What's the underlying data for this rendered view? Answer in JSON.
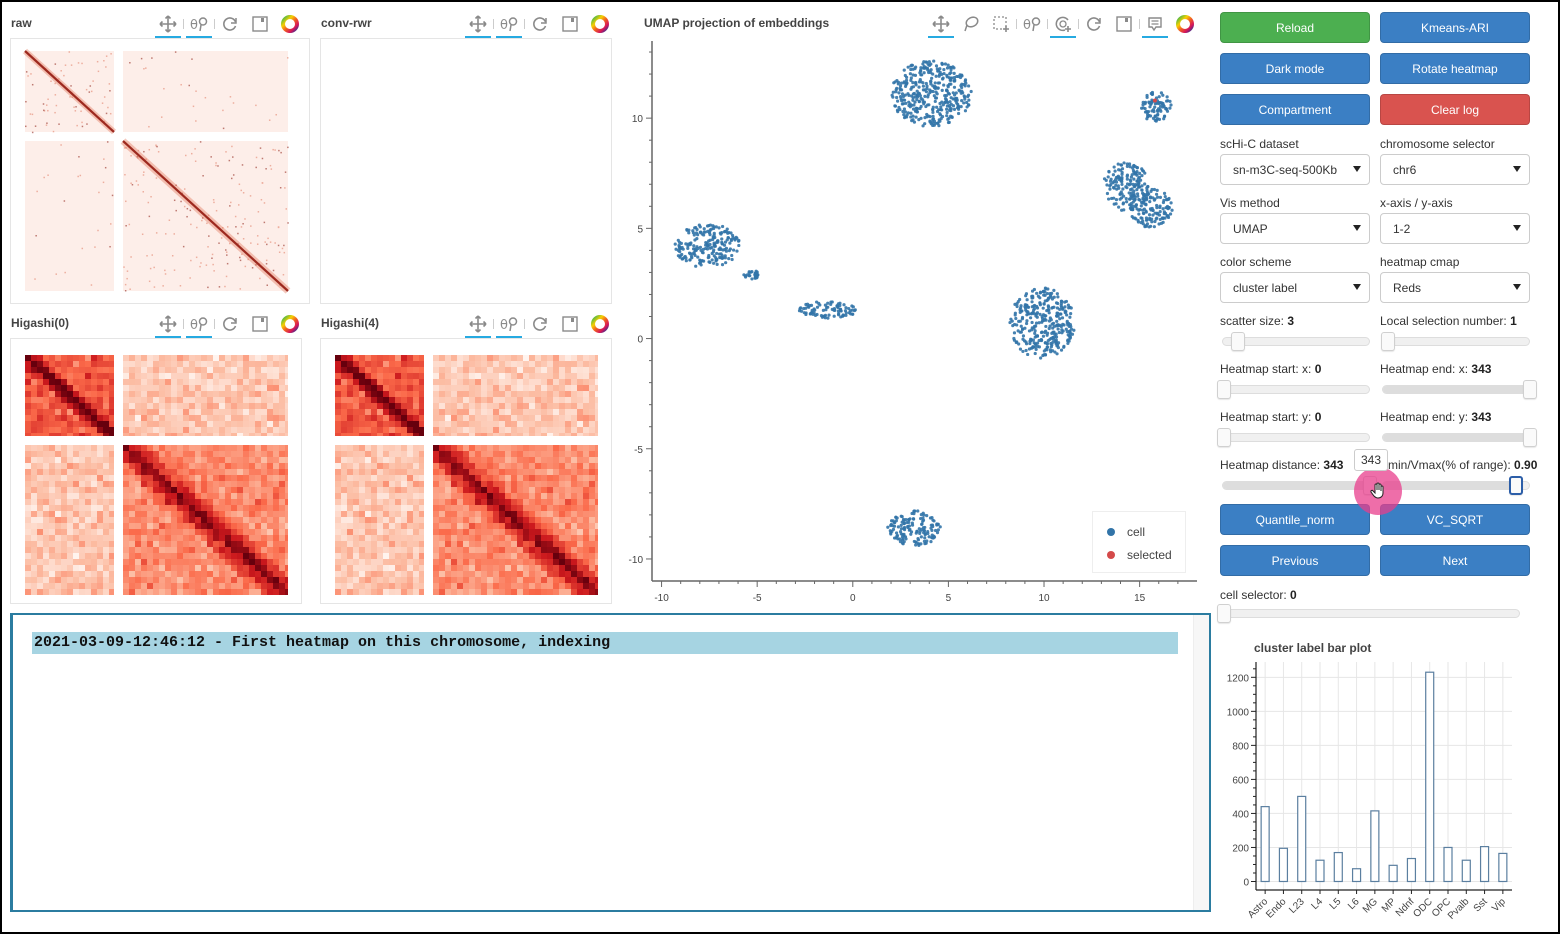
{
  "panels": {
    "raw": {
      "title": "raw"
    },
    "conv_rwr": {
      "title": "conv-rwr"
    },
    "higashi0": {
      "title": "Higashi(0)"
    },
    "higashi4": {
      "title": "Higashi(4)"
    },
    "umap": {
      "title": "UMAP projection of embeddings"
    }
  },
  "toolbar_icons": {
    "heatmap": [
      "pan-icon",
      "wheel-zoom-icon",
      "reset-icon",
      "save-icon",
      "bokeh-logo-icon"
    ],
    "umap": [
      "pan-icon",
      "lasso-select-icon",
      "box-select-icon",
      "wheel-zoom-icon",
      "tap-icon",
      "reset-icon",
      "save-icon",
      "hover-icon",
      "bokeh-logo-icon"
    ]
  },
  "buttons": {
    "reload": "Reload",
    "kmeans": "Kmeans-ARI",
    "dark_mode": "Dark mode",
    "rotate": "Rotate heatmap",
    "compartment": "Compartment",
    "clear_log": "Clear log",
    "quantile": "Quantile_norm",
    "vc_sqrt": "VC_SQRT",
    "previous": "Previous",
    "next": "Next"
  },
  "selects": {
    "dataset": {
      "label": "scHi-C dataset",
      "value": "sn-m3C-seq-500Kb"
    },
    "chromosome": {
      "label": "chromosome selector",
      "value": "chr6"
    },
    "vis_method": {
      "label": "Vis method",
      "value": "UMAP"
    },
    "axis": {
      "label": "x-axis / y-axis",
      "value": "1-2"
    },
    "color_scheme": {
      "label": "color scheme",
      "value": "cluster label"
    },
    "cmap": {
      "label": "heatmap cmap",
      "value": "Reds"
    }
  },
  "sliders": {
    "scatter_size": {
      "label": "scatter size: ",
      "value": "3"
    },
    "local_sel": {
      "label": "Local selection number: ",
      "value": "1"
    },
    "hm_start_x": {
      "label": "Heatmap start: x: ",
      "value": "0"
    },
    "hm_end_x": {
      "label": "Heatmap end: x: ",
      "value": "343"
    },
    "hm_start_y": {
      "label": "Heatmap start: y: ",
      "value": "0"
    },
    "hm_end_y": {
      "label": "Heatmap end: y: ",
      "value": "343"
    },
    "hm_distance": {
      "label": "Heatmap distance: ",
      "value": "343"
    },
    "vminmax": {
      "label": "Vmin/Vmax(% of range): ",
      "value": "0.90"
    },
    "cell_selector": {
      "label": "cell selector: ",
      "value": "0"
    }
  },
  "tooltip": {
    "value": "343"
  },
  "log": {
    "lines": [
      "2021-03-09-12:46:12 - First heatmap on this chromosome, indexing"
    ]
  },
  "umap_legend": {
    "cell": {
      "label": "cell",
      "color": "#3274a8"
    },
    "selected": {
      "label": "selected",
      "color": "#d44a4a"
    }
  },
  "umap_axes": {
    "x_ticks": [
      "-10",
      "-5",
      "0",
      "5",
      "10",
      "15"
    ],
    "y_ticks": [
      "10",
      "5",
      "0",
      "-5",
      "-10"
    ]
  },
  "chart_data": [
    {
      "type": "scatter",
      "title": "UMAP projection of embeddings",
      "xlabel": "",
      "ylabel": "",
      "xlim": [
        -10.5,
        18
      ],
      "ylim": [
        -11,
        13.5
      ],
      "series": [
        {
          "name": "cell",
          "color": "#3274a8",
          "clusters": [
            {
              "cx": 4.1,
              "cy": 11.1,
              "rx": 2.1,
              "ry": 1.5
            },
            {
              "cx": -7.6,
              "cy": 4.2,
              "rx": 1.7,
              "ry": 1.0
            },
            {
              "cx": -5.3,
              "cy": 2.9,
              "rx": 0.4,
              "ry": 0.2
            },
            {
              "cx": -1.3,
              "cy": 1.3,
              "rx": 1.5,
              "ry": 0.4
            },
            {
              "cx": 15.9,
              "cy": 10.5,
              "rx": 0.8,
              "ry": 0.7
            },
            {
              "cx": 14.3,
              "cy": 6.9,
              "rx": 1.2,
              "ry": 1.1
            },
            {
              "cx": 15.6,
              "cy": 5.9,
              "rx": 1.1,
              "ry": 0.9
            },
            {
              "cx": 9.9,
              "cy": 0.7,
              "rx": 1.7,
              "ry": 1.6
            },
            {
              "cx": 3.2,
              "cy": -8.6,
              "rx": 1.4,
              "ry": 0.8
            }
          ]
        },
        {
          "name": "selected",
          "color": "#d44a4a",
          "points": [
            [
              15.8,
              10.8
            ]
          ]
        }
      ],
      "legend_position": "bottom-right"
    },
    {
      "type": "bar",
      "title": "cluster label bar plot",
      "categories": [
        "Astro",
        "Endo",
        "L23",
        "L4",
        "L5",
        "L6",
        "MG",
        "MP",
        "Ndnf",
        "ODC",
        "OPC",
        "Pvalb",
        "Sst",
        "Vip"
      ],
      "values": [
        440,
        195,
        500,
        125,
        170,
        75,
        415,
        95,
        135,
        1230,
        200,
        125,
        205,
        165
      ],
      "xlabel": "",
      "ylabel": "",
      "ylim": [
        -50,
        1290
      ],
      "yticks": [
        "0",
        "200",
        "400",
        "600",
        "800",
        "1000",
        "1200"
      ],
      "grid": true
    }
  ]
}
